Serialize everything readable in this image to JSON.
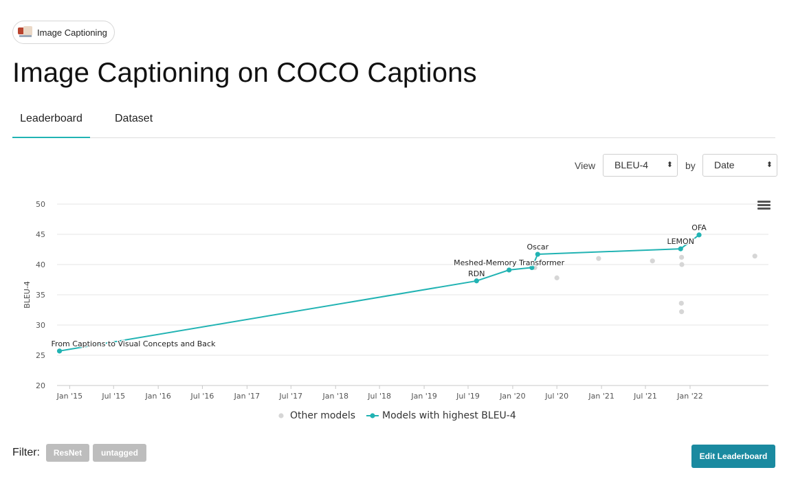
{
  "task": {
    "label": "Image Captioning",
    "icon": "task-thumbnail"
  },
  "title": "Image Captioning on COCO Captions",
  "tabs": [
    {
      "label": "Leaderboard",
      "active": true
    },
    {
      "label": "Dataset",
      "active": false
    }
  ],
  "view": {
    "view_label": "View",
    "metric": "BLEU-4",
    "by_label": "by",
    "by_value": "Date"
  },
  "colors": {
    "accent": "#21b3b3",
    "other": "#d6d6d6",
    "button": "#1a8aa0",
    "tag": "#bdbdbd"
  },
  "chart_data": {
    "type": "line",
    "ylabel": "BLEU-4",
    "xlabel": "",
    "ylim": [
      20,
      50
    ],
    "yticks": [
      20,
      25,
      30,
      35,
      40,
      45,
      50
    ],
    "xlim": [
      "2014-11-10",
      "2022-11-20"
    ],
    "xticks": [
      "Jan '15",
      "Jul '15",
      "Jan '16",
      "Jul '16",
      "Jan '17",
      "Jul '17",
      "Jan '18",
      "Jul '18",
      "Jan '19",
      "Jul '19",
      "Jan '20",
      "Jul '20",
      "Jan '21",
      "Jul '21",
      "Jan '22"
    ],
    "xtick_dates": [
      "2015-01-01",
      "2015-07-01",
      "2016-01-01",
      "2016-07-01",
      "2017-01-01",
      "2017-07-01",
      "2018-01-01",
      "2018-07-01",
      "2019-01-01",
      "2019-07-01",
      "2020-01-01",
      "2020-07-01",
      "2021-01-01",
      "2021-07-01",
      "2022-01-01"
    ],
    "grid": true,
    "legend_position": "bottom",
    "series": [
      {
        "name": "Models with highest BLEU-4",
        "color": "#21b3b3",
        "points": [
          {
            "x": "2014-11-20",
            "y": 25.7,
            "label": "From Captions to Visual Concepts and Back"
          },
          {
            "x": "2019-08-05",
            "y": 37.3,
            "label": "RDN"
          },
          {
            "x": "2019-12-17",
            "y": 39.1,
            "label": "Meshed-Memory Transformer"
          },
          {
            "x": "2020-03-20",
            "y": 39.5,
            "label": ""
          },
          {
            "x": "2020-04-13",
            "y": 41.7,
            "label": "Oscar"
          },
          {
            "x": "2021-11-23",
            "y": 42.6,
            "label": "LEMON"
          },
          {
            "x": "2022-02-07",
            "y": 44.9,
            "label": "OFA"
          }
        ]
      },
      {
        "name": "Other models",
        "color": "#d6d6d6",
        "points": [
          {
            "x": "2020-04-01",
            "y": 39.5
          },
          {
            "x": "2020-07-01",
            "y": 37.8
          },
          {
            "x": "2020-12-20",
            "y": 41.0
          },
          {
            "x": "2021-07-30",
            "y": 40.6
          },
          {
            "x": "2021-11-27",
            "y": 41.2
          },
          {
            "x": "2021-11-28",
            "y": 40.0
          },
          {
            "x": "2021-11-26",
            "y": 33.6
          },
          {
            "x": "2021-11-27",
            "y": 32.2
          },
          {
            "x": "2022-09-25",
            "y": 41.4
          }
        ]
      }
    ]
  },
  "filter": {
    "label": "Filter:",
    "tags": [
      "ResNet",
      "untagged"
    ]
  },
  "edit_button": "Edit Leaderboard",
  "chart_menu_icon": "hamburger-menu-icon"
}
